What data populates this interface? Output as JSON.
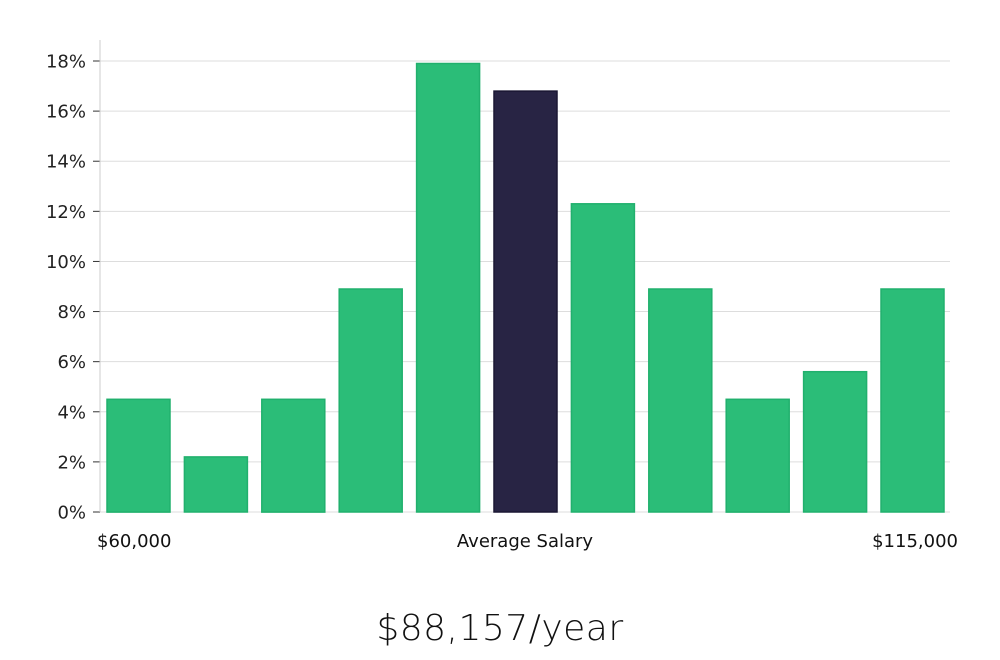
{
  "chart_data": {
    "type": "bar",
    "x_labels": {
      "left": "$60,000",
      "center": "Average Salary",
      "right": "$115,000"
    },
    "values": [
      4.5,
      2.2,
      4.5,
      8.9,
      17.9,
      16.8,
      12.3,
      8.9,
      4.5,
      5.6,
      8.9
    ],
    "highlight_index": 5,
    "ylim": [
      0,
      18
    ],
    "y_ticks": [
      0,
      2,
      4,
      6,
      8,
      10,
      12,
      14,
      16,
      18
    ],
    "y_tick_labels": [
      "0%",
      "2%",
      "4%",
      "6%",
      "8%",
      "10%",
      "12%",
      "14%",
      "16%",
      "18%"
    ],
    "grid": true,
    "colors": {
      "bar": "#2bbd78",
      "bar_edge": "#21b06d",
      "highlight": "#282444",
      "grid": "#dddddd",
      "axis": "#cccccc"
    }
  },
  "summary": {
    "average_salary": "$88,157/year"
  }
}
